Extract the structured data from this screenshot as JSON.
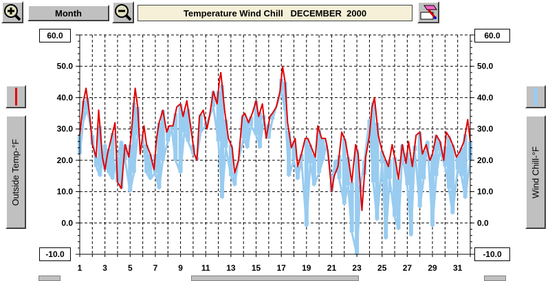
{
  "toolbar": {
    "zoom_in_icon": "zoom-in-icon",
    "zoom_out_icon": "zoom-out-icon",
    "period_label": "Month",
    "title": "Temperature Wind Chill   DECEMBER  2000",
    "print_icon": "print-icon"
  },
  "left_axis": {
    "max_box": "60.0",
    "min_box": "-10.0",
    "title": "Outside Temp-°F",
    "legend_color": "#e00000"
  },
  "right_axis": {
    "max_box": "60.0",
    "min_box": "-10.0",
    "title": "Wind Chill-°F",
    "legend_color": "#99ccf0"
  },
  "chart_data": {
    "type": "line",
    "title": "Temperature Wind Chill   DECEMBER  2000",
    "xlabel": "",
    "ylabel": "Outside Temp-°F",
    "y2label": "Wind Chill-°F",
    "ylim": [
      -10,
      60
    ],
    "xlim": [
      1,
      32
    ],
    "y_ticks": [
      "60.0",
      "50.0",
      "40.0",
      "30.0",
      "20.0",
      "10.0",
      "0.0",
      "-10.0"
    ],
    "x_ticks": [
      "1",
      "3",
      "5",
      "7",
      "9",
      "11",
      "13",
      "15",
      "17",
      "19",
      "21",
      "23",
      "25",
      "27",
      "29",
      "31"
    ],
    "grid": true,
    "series": [
      {
        "name": "Outside Temp-°F",
        "color": "#e00000",
        "x": [
          1.0,
          1.3,
          1.5,
          1.8,
          2.0,
          2.3,
          2.5,
          2.8,
          3.0,
          3.2,
          3.5,
          3.8,
          4.0,
          4.3,
          4.6,
          4.9,
          5.1,
          5.4,
          5.6,
          5.8,
          6.1,
          6.3,
          6.6,
          6.9,
          7.1,
          7.3,
          7.6,
          7.9,
          8.1,
          8.4,
          8.7,
          9.0,
          9.2,
          9.5,
          9.8,
          10.1,
          10.3,
          10.5,
          10.8,
          11.1,
          11.3,
          11.6,
          11.9,
          12.1,
          12.2,
          12.5,
          12.8,
          13.1,
          13.3,
          13.6,
          13.9,
          14.1,
          14.4,
          14.7,
          15.0,
          15.2,
          15.5,
          15.8,
          16.1,
          16.3,
          16.6,
          16.9,
          17.1,
          17.3,
          17.5,
          17.8,
          18.1,
          18.3,
          18.6,
          18.9,
          19.1,
          19.4,
          19.7,
          19.9,
          20.2,
          20.5,
          20.7,
          21.0,
          21.2,
          21.5,
          21.8,
          22.1,
          22.3,
          22.6,
          22.9,
          23.1,
          23.4,
          23.7,
          24.0,
          24.2,
          24.4,
          24.7,
          25.0,
          25.3,
          25.5,
          25.8,
          26.1,
          26.3,
          26.6,
          26.9,
          27.1,
          27.4,
          27.7,
          28.0,
          28.2,
          28.5,
          28.8,
          29.0,
          29.3,
          29.6,
          29.9,
          30.1,
          30.4,
          30.7,
          30.9,
          31.2,
          31.5,
          31.8,
          32.0
        ],
        "values": [
          28,
          39,
          43,
          34,
          25,
          21,
          36,
          21,
          17,
          22,
          27,
          32,
          13,
          11,
          25,
          21,
          29,
          43,
          37,
          22,
          31,
          25,
          22,
          17,
          27,
          32,
          36,
          29,
          31,
          31,
          37,
          38,
          34,
          39,
          31,
          22,
          20,
          34,
          36,
          30,
          34,
          42,
          38,
          46,
          48,
          36,
          27,
          24,
          16,
          20,
          34,
          35,
          32,
          35,
          39,
          34,
          38,
          27,
          34,
          35,
          37,
          42,
          50,
          45,
          32,
          24,
          27,
          18,
          22,
          27,
          27,
          24,
          21,
          31,
          27,
          27,
          23,
          10,
          15,
          18,
          29,
          26,
          21,
          13,
          25,
          22,
          4,
          21,
          28,
          37,
          40,
          28,
          23,
          20,
          18,
          25,
          19,
          14,
          25,
          19,
          26,
          18,
          28,
          29,
          22,
          25,
          20,
          22,
          28,
          26,
          20,
          29,
          27,
          24,
          21,
          23,
          26,
          33,
          26
        ],
        "note": "Approximate readings from the plotted line"
      },
      {
        "name": "Wind Chill-°F",
        "color": "#99ccf0",
        "x": [
          1.0,
          1.3,
          1.6,
          2.0,
          2.3,
          2.6,
          3.0,
          3.3,
          3.6,
          4.0,
          4.3,
          4.6,
          5.0,
          5.3,
          5.6,
          6.0,
          6.3,
          6.6,
          7.0,
          7.3,
          7.6,
          8.0,
          8.3,
          8.6,
          9.0,
          9.3,
          9.6,
          10.0,
          10.3,
          10.6,
          11.0,
          11.3,
          11.6,
          12.0,
          12.3,
          12.6,
          13.0,
          13.3,
          13.6,
          14.0,
          14.3,
          14.6,
          15.0,
          15.3,
          15.6,
          16.0,
          16.3,
          16.6,
          17.0,
          17.3,
          17.6,
          18.0,
          18.3,
          18.6,
          19.0,
          19.3,
          19.6,
          20.0,
          20.3,
          20.6,
          21.0,
          21.3,
          21.6,
          22.0,
          22.3,
          22.6,
          23.0,
          23.3,
          23.6,
          24.0,
          24.3,
          24.6,
          25.0,
          25.3,
          25.6,
          26.0,
          26.3,
          26.6,
          27.0,
          27.3,
          27.6,
          28.0,
          28.3,
          28.6,
          29.0,
          29.3,
          29.6,
          30.0,
          30.3,
          30.6,
          31.0,
          31.3,
          31.6,
          32.0
        ],
        "values": [
          22,
          33,
          36,
          28,
          18,
          15,
          25,
          16,
          14,
          21,
          26,
          20,
          10,
          16,
          28,
          28,
          16,
          14,
          16,
          11,
          20,
          26,
          30,
          20,
          16,
          29,
          26,
          22,
          21,
          29,
          31,
          34,
          37,
          26,
          8,
          24,
          15,
          12,
          20,
          27,
          24,
          31,
          28,
          24,
          33,
          27,
          33,
          37,
          42,
          36,
          15,
          20,
          14,
          20,
          -1,
          19,
          12,
          16,
          20,
          25,
          13,
          20,
          14,
          6,
          12,
          -3,
          -10,
          12,
          20,
          33,
          13,
          1,
          19,
          -5,
          14,
          2,
          -2,
          22,
          12,
          -4,
          23,
          5,
          14,
          26,
          -1,
          15,
          23,
          18,
          11,
          3,
          17,
          15,
          8,
          20
        ],
        "note": "Approximate lower envelope of the shaded wind-chill trace"
      }
    ]
  }
}
